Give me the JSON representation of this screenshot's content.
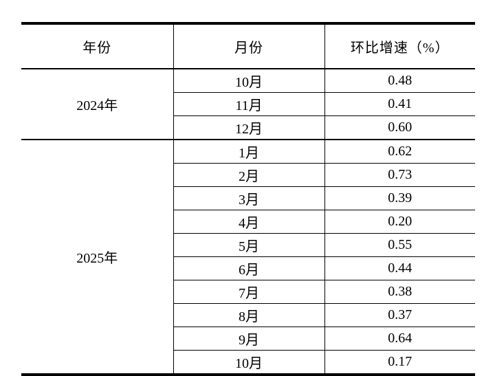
{
  "table": {
    "columns": [
      "年份",
      "月份",
      "环比增速（%）"
    ],
    "groups": [
      {
        "year": "2024年",
        "rows": [
          {
            "month": "10月",
            "value": "0.48"
          },
          {
            "month": "11月",
            "value": "0.41"
          },
          {
            "month": "12月",
            "value": "0.60"
          }
        ]
      },
      {
        "year": "2025年",
        "rows": [
          {
            "month": "1月",
            "value": "0.62"
          },
          {
            "month": "2月",
            "value": "0.73"
          },
          {
            "month": "3月",
            "value": "0.39"
          },
          {
            "month": "4月",
            "value": "0.20"
          },
          {
            "month": "5月",
            "value": "0.55"
          },
          {
            "month": "6月",
            "value": "0.44"
          },
          {
            "month": "7月",
            "value": "0.38"
          },
          {
            "month": "8月",
            "value": "0.37"
          },
          {
            "month": "9月",
            "value": "0.64"
          },
          {
            "month": "10月",
            "value": "0.17"
          }
        ]
      }
    ]
  },
  "chart_data": {
    "type": "table",
    "columns": [
      "年份",
      "月份",
      "环比增速（%）"
    ],
    "rows": [
      [
        "2024年",
        "10月",
        0.48
      ],
      [
        "2024年",
        "11月",
        0.41
      ],
      [
        "2024年",
        "12月",
        0.6
      ],
      [
        "2025年",
        "1月",
        0.62
      ],
      [
        "2025年",
        "2月",
        0.73
      ],
      [
        "2025年",
        "3月",
        0.39
      ],
      [
        "2025年",
        "4月",
        0.2
      ],
      [
        "2025年",
        "5月",
        0.55
      ],
      [
        "2025年",
        "6月",
        0.44
      ],
      [
        "2025年",
        "7月",
        0.38
      ],
      [
        "2025年",
        "8月",
        0.37
      ],
      [
        "2025年",
        "9月",
        0.64
      ],
      [
        "2025年",
        "10月",
        0.17
      ]
    ]
  },
  "colors": {
    "text": "#000000",
    "border": "#000000",
    "background": "#ffffff"
  }
}
